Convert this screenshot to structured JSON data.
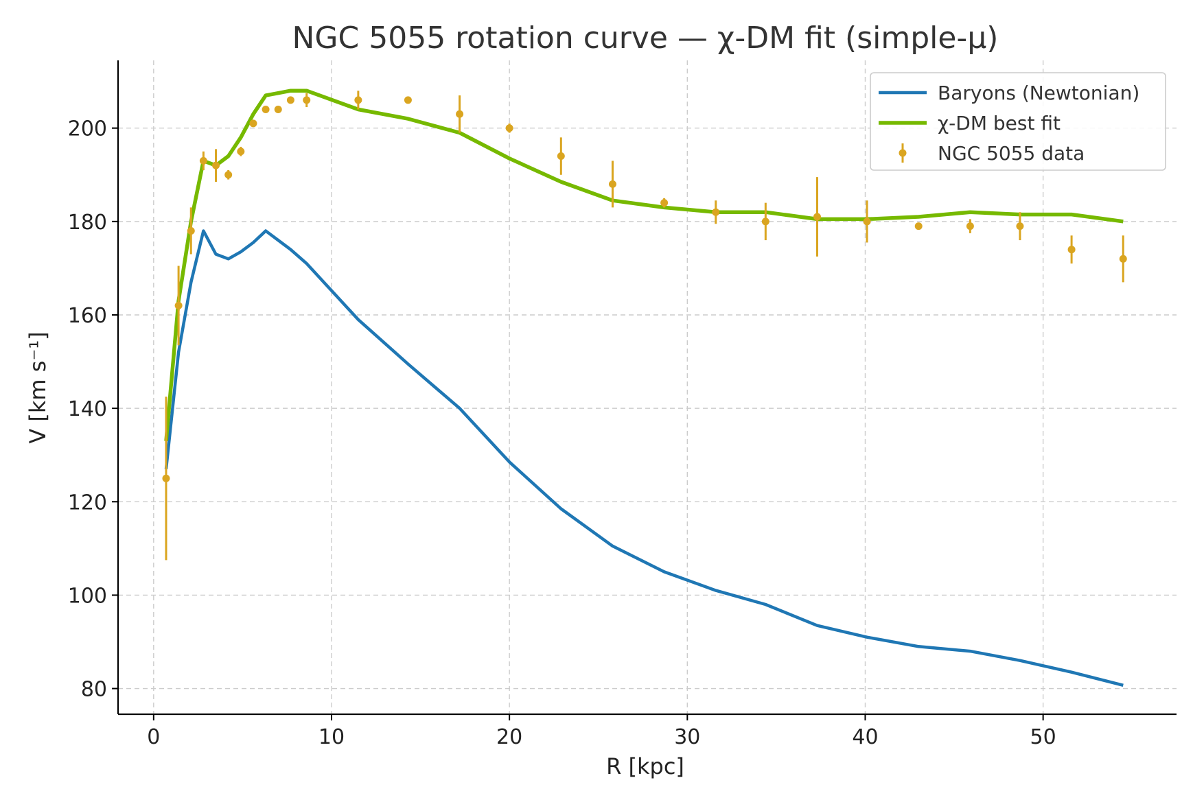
{
  "chart_data": {
    "type": "line",
    "title": "NGC 5055 rotation curve — χ-DM fit (simple-μ)",
    "xlabel": "R [kpc]",
    "ylabel": "V [km s⁻¹]",
    "xlim": [
      -2,
      57.5
    ],
    "ylim": [
      74.5,
      214.5
    ],
    "xticks": [
      0,
      10,
      20,
      30,
      40,
      50
    ],
    "yticks": [
      80,
      100,
      120,
      140,
      160,
      180,
      200
    ],
    "grid": true,
    "legend_position": "top-right",
    "series": [
      {
        "name": "Baryons (Newtonian)",
        "kind": "line",
        "color": "#1f77b4",
        "x": [
          0.7,
          1.4,
          2.1,
          2.8,
          3.5,
          4.2,
          4.9,
          5.6,
          6.3,
          7.0,
          7.7,
          8.6,
          11.5,
          14.3,
          17.2,
          20.0,
          22.9,
          25.8,
          28.7,
          31.6,
          34.4,
          37.3,
          40.1,
          43.0,
          45.9,
          48.7,
          51.6,
          54.5
        ],
        "y": [
          127,
          152,
          167,
          178,
          173,
          172,
          173.5,
          175.5,
          178,
          176,
          174,
          171,
          159,
          149.5,
          140,
          128.5,
          118.5,
          110.5,
          105,
          101,
          98,
          93.5,
          91,
          89,
          88,
          86,
          83.5,
          80.7
        ]
      },
      {
        "name": "χ-DM best fit",
        "kind": "line",
        "color": "#76b900",
        "x": [
          0.7,
          1.4,
          2.1,
          2.8,
          3.5,
          4.2,
          4.9,
          5.6,
          6.3,
          7.0,
          7.7,
          8.6,
          11.5,
          14.3,
          17.2,
          20.0,
          22.9,
          25.8,
          28.7,
          31.6,
          34.4,
          37.3,
          40.1,
          43.0,
          45.9,
          48.7,
          51.6,
          54.5
        ],
        "y": [
          133,
          163,
          180,
          193,
          192,
          194,
          198,
          203,
          207,
          207.5,
          208,
          208,
          204,
          202,
          199,
          193.5,
          188.5,
          184.5,
          183,
          182,
          182,
          180.5,
          180.5,
          181,
          182,
          181.5,
          181.5,
          180
        ]
      },
      {
        "name": "NGC 5055 data",
        "kind": "errorbar",
        "color": "#daa520",
        "x": [
          0.7,
          1.4,
          2.1,
          2.8,
          3.5,
          4.2,
          4.9,
          5.6,
          6.3,
          7.0,
          7.7,
          8.6,
          11.5,
          14.3,
          17.2,
          20.0,
          22.9,
          25.8,
          28.7,
          31.6,
          34.4,
          37.3,
          40.1,
          43.0,
          45.9,
          48.7,
          51.6,
          54.5
        ],
        "y": [
          125,
          162,
          178,
          193,
          192,
          190,
          195,
          201,
          204,
          204,
          206,
          206,
          206,
          206,
          203,
          200,
          194,
          188,
          184,
          182,
          180,
          181,
          180,
          179,
          179,
          179,
          174,
          172
        ],
        "yerr": [
          17.5,
          8.5,
          5,
          2,
          3.5,
          1,
          1,
          0.5,
          0.5,
          0.5,
          0.5,
          1.5,
          2,
          0.5,
          4,
          1,
          4,
          5,
          1,
          2.5,
          4,
          8.5,
          4.5,
          0.5,
          1.5,
          3,
          3,
          5
        ]
      }
    ]
  }
}
